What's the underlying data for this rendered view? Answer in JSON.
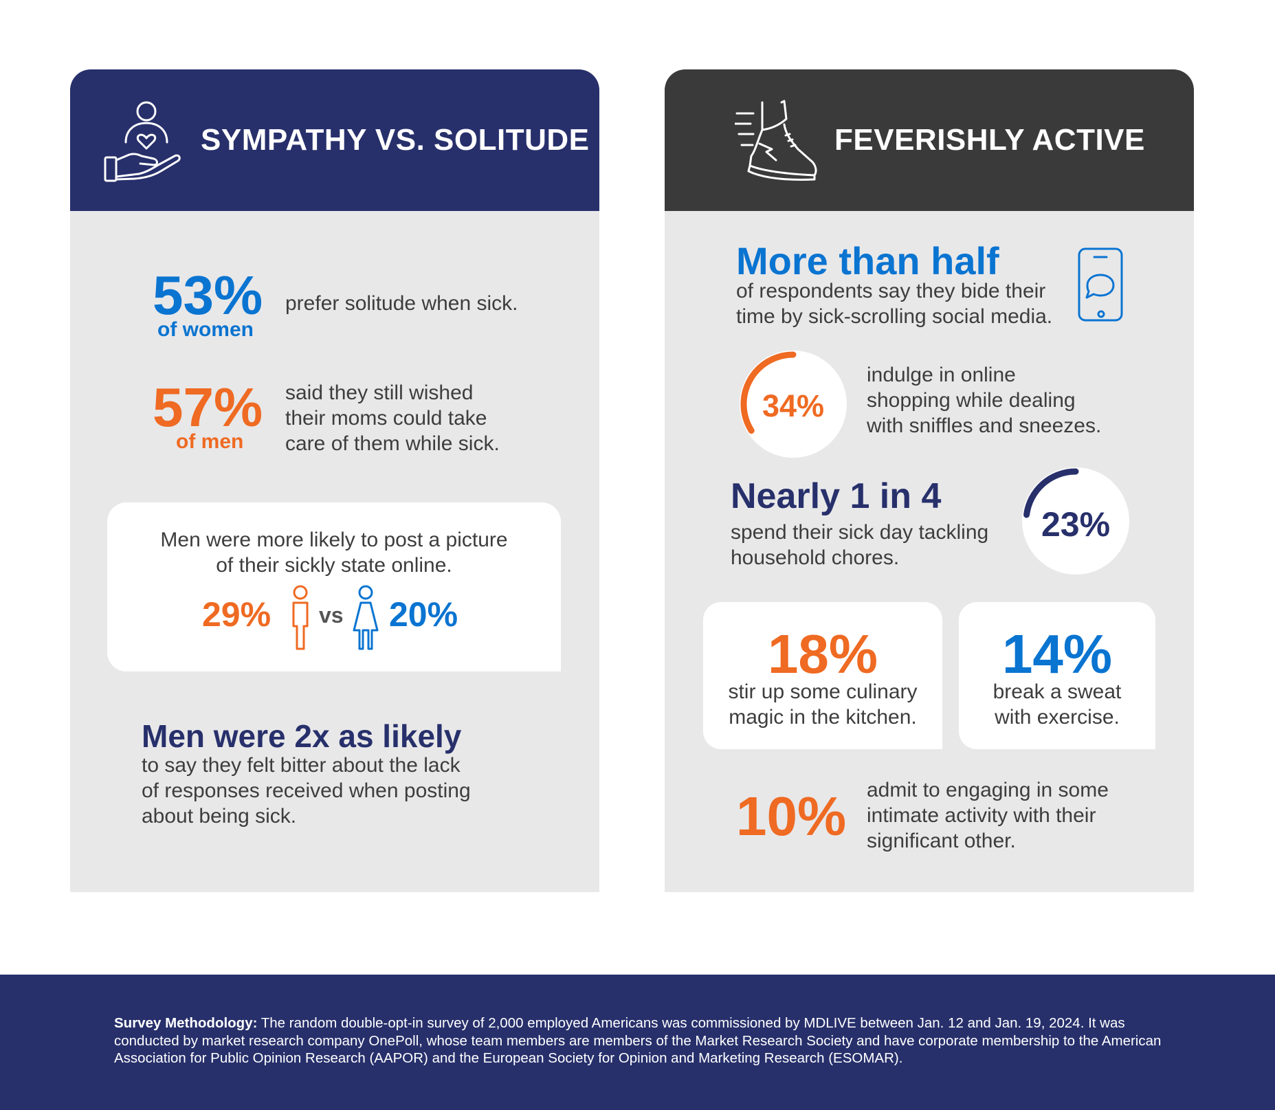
{
  "colors": {
    "navy": "#27306b",
    "dark": "#3a3a3b",
    "blue": "#0a74d1",
    "orange": "#ef6a22",
    "panel": "#e8e8e9"
  },
  "left": {
    "title": "SYMPATHY VS. SOLITUDE",
    "icon": "hand-heart-person-icon",
    "stat_women": {
      "value": "53%",
      "sub": "of women",
      "text": "prefer solitude when sick."
    },
    "stat_men": {
      "value": "57%",
      "sub": "of men",
      "text_lines": [
        "said they still wished",
        "their moms could take",
        "care of them while sick."
      ]
    },
    "picture_card": {
      "lines": [
        "Men were more likely to post a picture",
        "of their sickly state online."
      ],
      "men": "29%",
      "vs": "vs",
      "women": "20%",
      "men_icon": "man-icon",
      "women_icon": "woman-icon"
    },
    "bitter": {
      "heading": "Men were 2x as likely",
      "lines": [
        "to say they felt bitter about the lack",
        "of responses received when posting",
        "about being sick."
      ]
    }
  },
  "right": {
    "title": "FEVERISHLY ACTIVE",
    "icon": "running-shoe-icon",
    "half": {
      "heading": "More than half",
      "lines": [
        "of respondents say they bide their",
        "time by sick-scrolling social media."
      ],
      "icon": "phone-chat-icon"
    },
    "shopping": {
      "value": "34%",
      "fraction": 0.34,
      "lines": [
        "indulge in online",
        "shopping while dealing",
        "with sniffles and sneezes."
      ]
    },
    "chores": {
      "heading": "Nearly 1 in 4",
      "lines": [
        "spend their sick day tackling",
        "household chores."
      ],
      "value": "23%",
      "fraction": 0.23
    },
    "culinary": {
      "value": "18%",
      "lines": [
        "stir up some culinary",
        "magic in the kitchen."
      ]
    },
    "exercise": {
      "value": "14%",
      "lines": [
        "break a sweat",
        "with exercise."
      ]
    },
    "intimate": {
      "value": "10%",
      "lines": [
        "admit to engaging in some",
        "intimate activity with their",
        "significant other."
      ]
    }
  },
  "footer": {
    "label": "Survey Methodology:",
    "text": " The random double-opt-in survey of 2,000 employed Americans was commissioned by MDLIVE between Jan. 12 and Jan. 19, 2024. It was conducted by market research company OnePoll, whose team members are members of the Market Research Society and have corporate membership to the American Association for Public Opinion Research (AAPOR) and the European Society for Opinion and Marketing Research (ESOMAR)."
  }
}
